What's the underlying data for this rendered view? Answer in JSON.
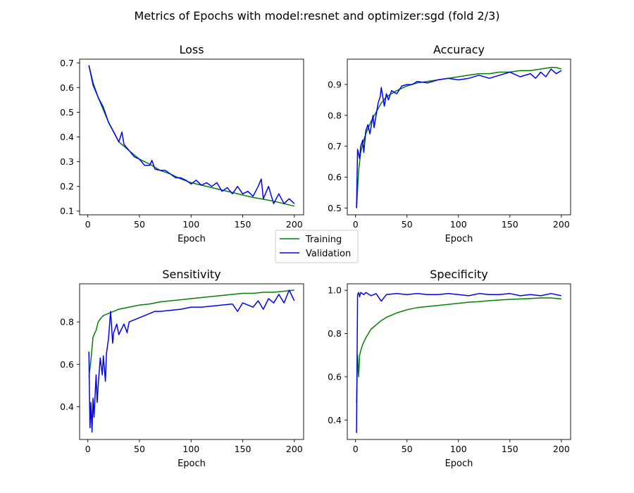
{
  "figure": {
    "title": "Metrics of Epochs with model:resnet and optimizer:sgd (fold 2/3)"
  },
  "legend": {
    "entries": [
      {
        "name": "Training",
        "color": "#008000"
      },
      {
        "name": "Validation",
        "color": "#0000ff"
      }
    ]
  },
  "chart_data": [
    {
      "type": "line",
      "title": "Loss",
      "xlabel": "Epoch",
      "ylabel": "",
      "xlim": [
        -8,
        209
      ],
      "ylim": [
        0.085,
        0.715
      ],
      "xticks": [
        0,
        50,
        100,
        150,
        200
      ],
      "yticks": [
        0.1,
        0.2,
        0.3,
        0.4,
        0.5,
        0.6,
        0.7
      ],
      "ytick_labels": [
        "0.1",
        "0.2",
        "0.3",
        "0.4",
        "0.5",
        "0.6",
        "0.7"
      ],
      "series": [
        {
          "name": "Training",
          "color": "#008000",
          "x": [
            1,
            5,
            10,
            15,
            20,
            25,
            30,
            40,
            50,
            60,
            70,
            80,
            90,
            100,
            110,
            120,
            130,
            140,
            150,
            160,
            170,
            180,
            190,
            200
          ],
          "y": [
            0.69,
            0.62,
            0.56,
            0.51,
            0.46,
            0.42,
            0.38,
            0.345,
            0.31,
            0.29,
            0.265,
            0.25,
            0.23,
            0.215,
            0.205,
            0.195,
            0.185,
            0.175,
            0.165,
            0.155,
            0.148,
            0.14,
            0.13,
            0.12
          ]
        },
        {
          "name": "Validation",
          "color": "#0000ff",
          "x": [
            1,
            5,
            10,
            15,
            20,
            25,
            30,
            33,
            35,
            40,
            45,
            50,
            55,
            60,
            62,
            65,
            70,
            75,
            80,
            85,
            90,
            95,
            100,
            105,
            110,
            115,
            120,
            125,
            130,
            135,
            140,
            145,
            150,
            155,
            160,
            165,
            168,
            170,
            175,
            180,
            185,
            190,
            195,
            200
          ],
          "y": [
            0.69,
            0.61,
            0.56,
            0.52,
            0.46,
            0.42,
            0.38,
            0.42,
            0.37,
            0.345,
            0.32,
            0.31,
            0.285,
            0.285,
            0.305,
            0.27,
            0.265,
            0.265,
            0.25,
            0.235,
            0.235,
            0.225,
            0.21,
            0.225,
            0.205,
            0.215,
            0.2,
            0.215,
            0.18,
            0.195,
            0.17,
            0.2,
            0.17,
            0.18,
            0.16,
            0.2,
            0.23,
            0.15,
            0.2,
            0.13,
            0.17,
            0.13,
            0.15,
            0.13
          ]
        }
      ]
    },
    {
      "type": "line",
      "title": "Accuracy",
      "xlabel": "Epoch",
      "ylabel": "",
      "xlim": [
        -8,
        209
      ],
      "ylim": [
        0.478,
        0.982
      ],
      "xticks": [
        0,
        50,
        100,
        150,
        200
      ],
      "yticks": [
        0.5,
        0.6,
        0.7,
        0.8,
        0.9
      ],
      "ytick_labels": [
        "0.5",
        "0.6",
        "0.7",
        "0.8",
        "0.9"
      ],
      "series": [
        {
          "name": "Training",
          "color": "#008000",
          "x": [
            1,
            3,
            5,
            8,
            10,
            15,
            20,
            25,
            30,
            40,
            50,
            60,
            70,
            80,
            90,
            100,
            110,
            120,
            130,
            140,
            150,
            160,
            170,
            180,
            190,
            195,
            200
          ],
          "y": [
            0.5,
            0.62,
            0.68,
            0.72,
            0.74,
            0.78,
            0.81,
            0.84,
            0.86,
            0.88,
            0.895,
            0.905,
            0.91,
            0.915,
            0.92,
            0.925,
            0.93,
            0.935,
            0.935,
            0.94,
            0.94,
            0.945,
            0.945,
            0.95,
            0.955,
            0.955,
            0.95
          ]
        },
        {
          "name": "Validation",
          "color": "#0000ff",
          "x": [
            1,
            2,
            4,
            5,
            7,
            8,
            10,
            12,
            14,
            17,
            18,
            20,
            22,
            24,
            25,
            28,
            30,
            32,
            35,
            40,
            45,
            50,
            55,
            60,
            70,
            80,
            90,
            100,
            110,
            120,
            130,
            140,
            150,
            160,
            170,
            175,
            180,
            185,
            190,
            195,
            200
          ],
          "y": [
            0.5,
            0.69,
            0.66,
            0.7,
            0.72,
            0.68,
            0.75,
            0.77,
            0.74,
            0.8,
            0.76,
            0.8,
            0.84,
            0.86,
            0.89,
            0.83,
            0.87,
            0.85,
            0.88,
            0.87,
            0.895,
            0.9,
            0.9,
            0.91,
            0.905,
            0.915,
            0.92,
            0.915,
            0.92,
            0.93,
            0.92,
            0.93,
            0.94,
            0.925,
            0.935,
            0.92,
            0.94,
            0.925,
            0.95,
            0.935,
            0.945
          ]
        }
      ]
    },
    {
      "type": "line",
      "title": "Sensitivity",
      "xlabel": "Epoch",
      "ylabel": "",
      "xlim": [
        -8,
        209
      ],
      "ylim": [
        0.245,
        0.98
      ],
      "xticks": [
        0,
        50,
        100,
        150,
        200
      ],
      "yticks": [
        0.4,
        0.6,
        0.8
      ],
      "ytick_labels": [
        "0.4",
        "0.6",
        "0.8"
      ],
      "series": [
        {
          "name": "Training",
          "color": "#008000",
          "x": [
            1,
            3,
            5,
            8,
            10,
            13,
            15,
            20,
            25,
            30,
            40,
            50,
            60,
            70,
            80,
            90,
            100,
            110,
            120,
            130,
            140,
            150,
            160,
            170,
            180,
            190,
            200
          ],
          "y": [
            0.54,
            0.62,
            0.73,
            0.76,
            0.8,
            0.82,
            0.83,
            0.84,
            0.85,
            0.86,
            0.87,
            0.88,
            0.885,
            0.895,
            0.9,
            0.905,
            0.91,
            0.915,
            0.92,
            0.925,
            0.93,
            0.935,
            0.935,
            0.94,
            0.94,
            0.945,
            0.95
          ]
        },
        {
          "name": "Validation",
          "color": "#0000ff",
          "x": [
            1,
            2,
            3,
            4,
            5,
            6,
            8,
            9,
            10,
            12,
            14,
            15,
            17,
            18,
            20,
            22,
            24,
            25,
            28,
            30,
            32,
            35,
            38,
            40,
            45,
            50,
            55,
            60,
            65,
            70,
            80,
            90,
            100,
            110,
            120,
            130,
            140,
            145,
            150,
            155,
            160,
            165,
            170,
            175,
            180,
            185,
            190,
            195,
            200
          ],
          "y": [
            0.66,
            0.3,
            0.42,
            0.28,
            0.44,
            0.35,
            0.55,
            0.42,
            0.5,
            0.63,
            0.55,
            0.64,
            0.52,
            0.65,
            0.72,
            0.85,
            0.7,
            0.75,
            0.79,
            0.74,
            0.76,
            0.79,
            0.75,
            0.8,
            0.81,
            0.82,
            0.83,
            0.84,
            0.85,
            0.85,
            0.855,
            0.86,
            0.87,
            0.87,
            0.875,
            0.88,
            0.885,
            0.85,
            0.89,
            0.88,
            0.87,
            0.9,
            0.86,
            0.91,
            0.89,
            0.93,
            0.89,
            0.95,
            0.9
          ]
        }
      ]
    },
    {
      "type": "line",
      "title": "Specificity",
      "xlabel": "Epoch",
      "ylabel": "",
      "xlim": [
        -8,
        209
      ],
      "ylim": [
        0.31,
        1.03
      ],
      "xticks": [
        0,
        50,
        100,
        150,
        200
      ],
      "yticks": [
        0.4,
        0.6,
        0.8,
        1.0
      ],
      "ytick_labels": [
        "0.4",
        "0.6",
        "0.8",
        "1.0"
      ],
      "series": [
        {
          "name": "Training",
          "color": "#008000",
          "x": [
            1,
            2,
            3,
            4,
            5,
            7,
            10,
            15,
            20,
            25,
            30,
            40,
            50,
            60,
            70,
            80,
            90,
            100,
            110,
            120,
            130,
            140,
            150,
            160,
            170,
            180,
            190,
            200
          ],
          "y": [
            0.48,
            0.7,
            0.6,
            0.7,
            0.72,
            0.75,
            0.78,
            0.82,
            0.84,
            0.86,
            0.875,
            0.895,
            0.91,
            0.92,
            0.925,
            0.93,
            0.935,
            0.94,
            0.945,
            0.948,
            0.952,
            0.955,
            0.958,
            0.96,
            0.962,
            0.965,
            0.965,
            0.96
          ]
        },
        {
          "name": "Validation",
          "color": "#0000ff",
          "x": [
            1,
            2,
            3,
            4,
            5,
            8,
            10,
            15,
            20,
            25,
            30,
            40,
            50,
            60,
            70,
            80,
            90,
            100,
            110,
            120,
            130,
            140,
            150,
            160,
            170,
            180,
            190,
            200
          ],
          "y": [
            0.34,
            0.98,
            0.99,
            0.97,
            0.99,
            0.98,
            0.99,
            0.975,
            0.985,
            0.95,
            0.98,
            0.985,
            0.98,
            0.985,
            0.98,
            0.98,
            0.985,
            0.98,
            0.975,
            0.985,
            0.98,
            0.98,
            0.985,
            0.975,
            0.98,
            0.975,
            0.985,
            0.975
          ]
        }
      ]
    }
  ]
}
